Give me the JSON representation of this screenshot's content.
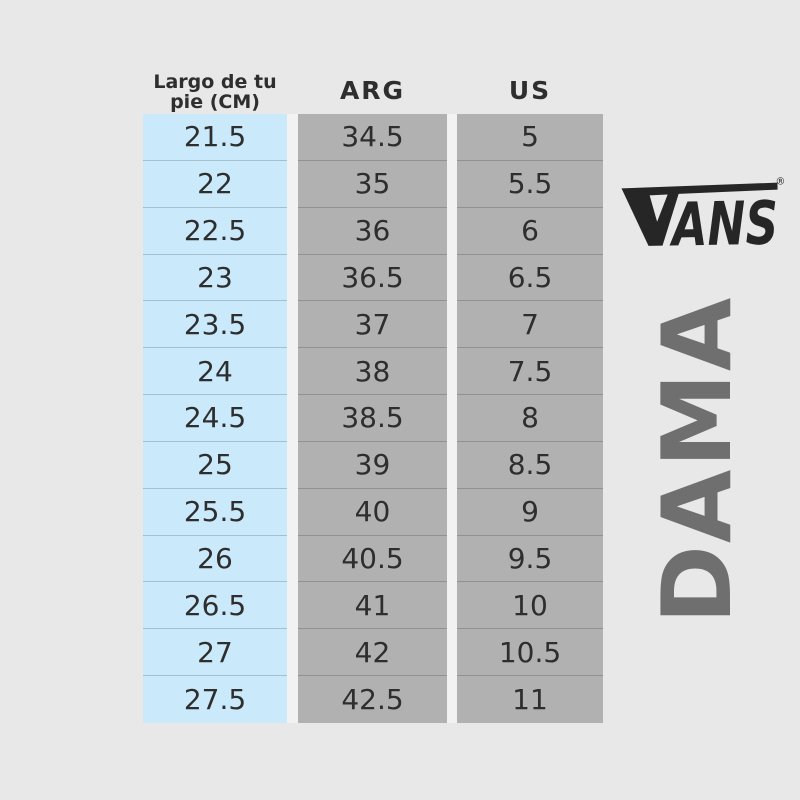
{
  "chart_data": {
    "type": "table",
    "columns": [
      "Largo de tu pie (CM)",
      "ARG",
      "US"
    ],
    "rows": [
      [
        "21.5",
        "34.5",
        "5"
      ],
      [
        "22",
        "35",
        "5.5"
      ],
      [
        "22.5",
        "36",
        "6"
      ],
      [
        "23",
        "36.5",
        "6.5"
      ],
      [
        "23.5",
        "37",
        "7"
      ],
      [
        "24",
        "38",
        "7.5"
      ],
      [
        "24.5",
        "38.5",
        "8"
      ],
      [
        "25",
        "39",
        "8.5"
      ],
      [
        "25.5",
        "40",
        "9"
      ],
      [
        "26",
        "40.5",
        "9.5"
      ],
      [
        "26.5",
        "41",
        "10"
      ],
      [
        "27",
        "42",
        "10.5"
      ],
      [
        "27.5",
        "42.5",
        "11"
      ]
    ]
  },
  "header_display": {
    "foot_line1": "Largo de tu",
    "foot_line2": "pie (CM)"
  },
  "brand": {
    "logo_text": "VANS",
    "registered_mark": "®"
  },
  "category_label": {
    "text": "DAMA"
  },
  "colors": {
    "background": "#e8e8e8",
    "cm_col_bg": "#cae9fa",
    "size_col_bg": "#b1b1b1",
    "gap_bg": "#f2f2f2",
    "divider": "rgba(0,0,0,0.18)",
    "text": "#2e2e2e",
    "dama": "#6f6f6f",
    "logo": "#262626"
  }
}
